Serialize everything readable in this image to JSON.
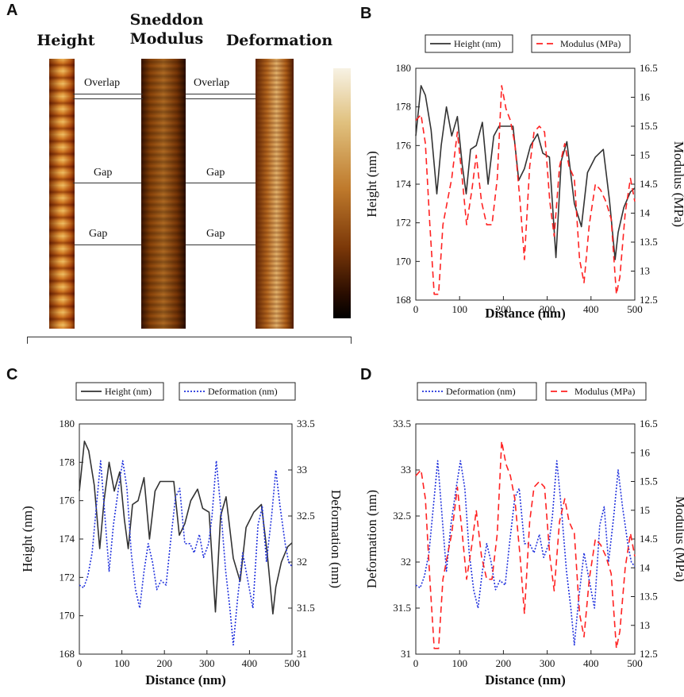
{
  "panel_letters": {
    "a": "A",
    "b": "B",
    "c": "C",
    "d": "D"
  },
  "afm": {
    "height_label": "Height",
    "modulus_label_1": "Sneddon",
    "modulus_label_2": "Modulus",
    "deformation_label": "Deformation",
    "overlap": "Overlap",
    "gap": "Gap"
  },
  "colors": {
    "height": "#333333",
    "modulus": "#ff2222",
    "deformation": "#2233dd"
  },
  "chart_data": [
    {
      "type": "line",
      "panel": "B",
      "xlabel": "Distance (nm)",
      "ylabel": "Height (nm)",
      "y2label": "Modulus (MPa)",
      "xlim": [
        0,
        500
      ],
      "ylim": [
        168,
        180
      ],
      "y2lim": [
        12.5,
        16.5
      ],
      "x_ticks": [
        "0",
        "100",
        "200",
        "300",
        "400",
        "500"
      ],
      "y_ticks": [
        "168",
        "170",
        "172",
        "174",
        "176",
        "178",
        "180"
      ],
      "y2_ticks": [
        "12.5",
        "13",
        "13.5",
        "14",
        "14.5",
        "15",
        "15.5",
        "16",
        "16.5"
      ],
      "legend": [
        "Height (nm)",
        "Modulus (MPa)"
      ],
      "series": [
        {
          "name": "Height (nm)",
          "axis": "left",
          "style": "solid",
          "color": "#333333",
          "x": [
            0,
            12,
            22,
            35,
            48,
            58,
            70,
            82,
            95,
            106,
            115,
            125,
            138,
            152,
            165,
            178,
            190,
            205,
            222,
            235,
            248,
            262,
            278,
            290,
            305,
            320,
            332,
            345,
            362,
            378,
            392,
            410,
            428,
            442,
            455,
            462,
            475,
            490,
            500
          ],
          "y": [
            176.5,
            179.1,
            178.6,
            176.8,
            173.5,
            176,
            178,
            176.5,
            177.5,
            175,
            173.5,
            175.8,
            176,
            177.2,
            174,
            176.5,
            177,
            177,
            177,
            174.2,
            174.8,
            176,
            176.6,
            175.6,
            175.4,
            170.2,
            175.2,
            176.2,
            173,
            171.8,
            174.6,
            175.4,
            175.8,
            173.2,
            170.1,
            171.5,
            172.8,
            173.6,
            173.8
          ]
        },
        {
          "name": "Modulus (MPa)",
          "axis": "right",
          "style": "dashed",
          "color": "#ff2222",
          "x": [
            0,
            12,
            22,
            32,
            42,
            52,
            62,
            72,
            82,
            95,
            106,
            116,
            128,
            138,
            150,
            162,
            174,
            186,
            196,
            206,
            216,
            226,
            238,
            248,
            260,
            270,
            282,
            294,
            306,
            316,
            328,
            340,
            350,
            362,
            374,
            384,
            396,
            410,
            422,
            434,
            446,
            458,
            466,
            478,
            490,
            500
          ],
          "y": [
            15.6,
            15.7,
            15.2,
            13.8,
            12.6,
            12.6,
            13.8,
            14.2,
            14.6,
            15.4,
            14.6,
            13.8,
            14.4,
            15,
            14.2,
            13.8,
            13.8,
            14.6,
            16.2,
            15.8,
            15.6,
            15.2,
            14.2,
            13.2,
            14.8,
            15.4,
            15.5,
            15.4,
            14.2,
            13.6,
            14.8,
            15.2,
            14.8,
            14.6,
            13.2,
            12.8,
            13.8,
            14.5,
            14.4,
            14.2,
            13.9,
            12.6,
            12.9,
            14,
            14.6,
            14.2
          ]
        }
      ]
    },
    {
      "type": "line",
      "panel": "C",
      "xlabel": "Distance (nm)",
      "ylabel": "Height (nm)",
      "y2label": "Deformation (nm)",
      "xlim": [
        0,
        500
      ],
      "ylim": [
        168,
        180
      ],
      "y2lim": [
        31,
        33.5
      ],
      "x_ticks": [
        "0",
        "100",
        "200",
        "300",
        "400",
        "500"
      ],
      "y_ticks": [
        "168",
        "170",
        "172",
        "174",
        "176",
        "178",
        "180"
      ],
      "y2_ticks": [
        "31",
        "31.5",
        "32",
        "32.5",
        "33",
        "33.5"
      ],
      "legend": [
        "Height (nm)",
        "Deformation (nm)"
      ],
      "series": [
        {
          "name": "Height (nm)",
          "axis": "left",
          "style": "solid",
          "color": "#333333",
          "x": [
            0,
            12,
            22,
            35,
            48,
            58,
            70,
            82,
            95,
            106,
            115,
            125,
            138,
            152,
            165,
            178,
            190,
            205,
            222,
            235,
            248,
            262,
            278,
            290,
            305,
            320,
            332,
            345,
            362,
            378,
            392,
            410,
            428,
            442,
            455,
            462,
            475,
            490,
            500
          ],
          "y": [
            176.5,
            179.1,
            178.6,
            176.8,
            173.5,
            176,
            178,
            176.5,
            177.5,
            175,
            173.5,
            175.8,
            176,
            177.2,
            174,
            176.5,
            177,
            177,
            177,
            174.2,
            174.8,
            176,
            176.6,
            175.6,
            175.4,
            170.2,
            175.2,
            176.2,
            173,
            171.8,
            174.6,
            175.4,
            175.8,
            173.2,
            170.1,
            171.5,
            172.8,
            173.6,
            173.8
          ]
        },
        {
          "name": "Deformation (nm)",
          "axis": "right",
          "style": "dotted",
          "color": "#2233dd",
          "x": [
            0,
            10,
            20,
            30,
            40,
            50,
            60,
            70,
            80,
            92,
            102,
            112,
            122,
            132,
            142,
            152,
            162,
            172,
            182,
            192,
            204,
            214,
            226,
            236,
            248,
            260,
            270,
            282,
            292,
            304,
            312,
            322,
            332,
            344,
            354,
            362,
            372,
            384,
            396,
            408,
            420,
            430,
            440,
            452,
            462,
            472,
            484,
            492,
            500
          ],
          "y": [
            31.75,
            31.72,
            31.85,
            32.1,
            32.6,
            33.1,
            32.5,
            31.9,
            32.4,
            32.8,
            33.1,
            32.8,
            32.1,
            31.7,
            31.5,
            31.9,
            32.2,
            32,
            31.7,
            31.8,
            31.75,
            32.2,
            32.7,
            32.8,
            32.2,
            32.2,
            32.1,
            32.3,
            32.05,
            32.2,
            32.5,
            33.1,
            32.6,
            31.9,
            31.5,
            31.1,
            31.6,
            32.1,
            31.8,
            31.5,
            32.4,
            32.6,
            32,
            32.5,
            33.0,
            32.6,
            32.2,
            32.0,
            31.95
          ]
        }
      ]
    },
    {
      "type": "line",
      "panel": "D",
      "xlabel": "Distance (nm)",
      "ylabel": "Deformation (nm)",
      "y2label": "Modulus (MPa)",
      "xlim": [
        0,
        500
      ],
      "ylim": [
        31,
        33.5
      ],
      "y2lim": [
        12.5,
        16.5
      ],
      "x_ticks": [
        "0",
        "100",
        "200",
        "300",
        "400",
        "500"
      ],
      "y_ticks": [
        "31",
        "31.5",
        "32",
        "32.5",
        "33",
        "33.5"
      ],
      "y2_ticks": [
        "12.5",
        "13",
        "13.5",
        "14",
        "14.5",
        "15",
        "15.5",
        "16",
        "16.5"
      ],
      "legend": [
        "Deformation (nm)",
        "Modulus (MPa)"
      ],
      "series": [
        {
          "name": "Deformation (nm)",
          "axis": "left",
          "style": "dotted",
          "color": "#2233dd",
          "x": [
            0,
            10,
            20,
            30,
            40,
            50,
            60,
            70,
            80,
            92,
            102,
            112,
            122,
            132,
            142,
            152,
            162,
            172,
            182,
            192,
            204,
            214,
            226,
            236,
            248,
            260,
            270,
            282,
            292,
            304,
            312,
            322,
            332,
            344,
            354,
            362,
            372,
            384,
            396,
            408,
            420,
            430,
            440,
            452,
            462,
            472,
            484,
            492,
            500
          ],
          "y": [
            31.75,
            31.72,
            31.85,
            32.1,
            32.6,
            33.1,
            32.5,
            31.9,
            32.4,
            32.8,
            33.1,
            32.8,
            32.1,
            31.7,
            31.5,
            31.9,
            32.2,
            32,
            31.7,
            31.8,
            31.75,
            32.2,
            32.7,
            32.8,
            32.2,
            32.2,
            32.1,
            32.3,
            32.05,
            32.2,
            32.5,
            33.1,
            32.6,
            31.9,
            31.5,
            31.1,
            31.6,
            32.1,
            31.8,
            31.5,
            32.4,
            32.6,
            32,
            32.5,
            33.0,
            32.6,
            32.2,
            32.0,
            31.95
          ]
        },
        {
          "name": "Modulus (MPa)",
          "axis": "right",
          "style": "dashed",
          "color": "#ff2222",
          "x": [
            0,
            12,
            22,
            32,
            42,
            52,
            62,
            72,
            82,
            95,
            106,
            116,
            128,
            138,
            150,
            162,
            174,
            186,
            196,
            206,
            216,
            226,
            238,
            248,
            260,
            270,
            282,
            294,
            306,
            316,
            328,
            340,
            350,
            362,
            374,
            384,
            396,
            410,
            422,
            434,
            446,
            458,
            466,
            478,
            490,
            500
          ],
          "y": [
            15.6,
            15.7,
            15.2,
            13.8,
            12.6,
            12.6,
            13.8,
            14.2,
            14.6,
            15.4,
            14.6,
            13.8,
            14.4,
            15,
            14.2,
            13.8,
            13.8,
            14.6,
            16.2,
            15.8,
            15.6,
            15.2,
            14.2,
            13.2,
            14.8,
            15.4,
            15.5,
            15.4,
            14.2,
            13.6,
            14.8,
            15.2,
            14.8,
            14.6,
            13.2,
            12.8,
            13.8,
            14.5,
            14.4,
            14.2,
            13.9,
            12.6,
            12.9,
            14,
            14.6,
            14.2
          ]
        }
      ]
    }
  ]
}
